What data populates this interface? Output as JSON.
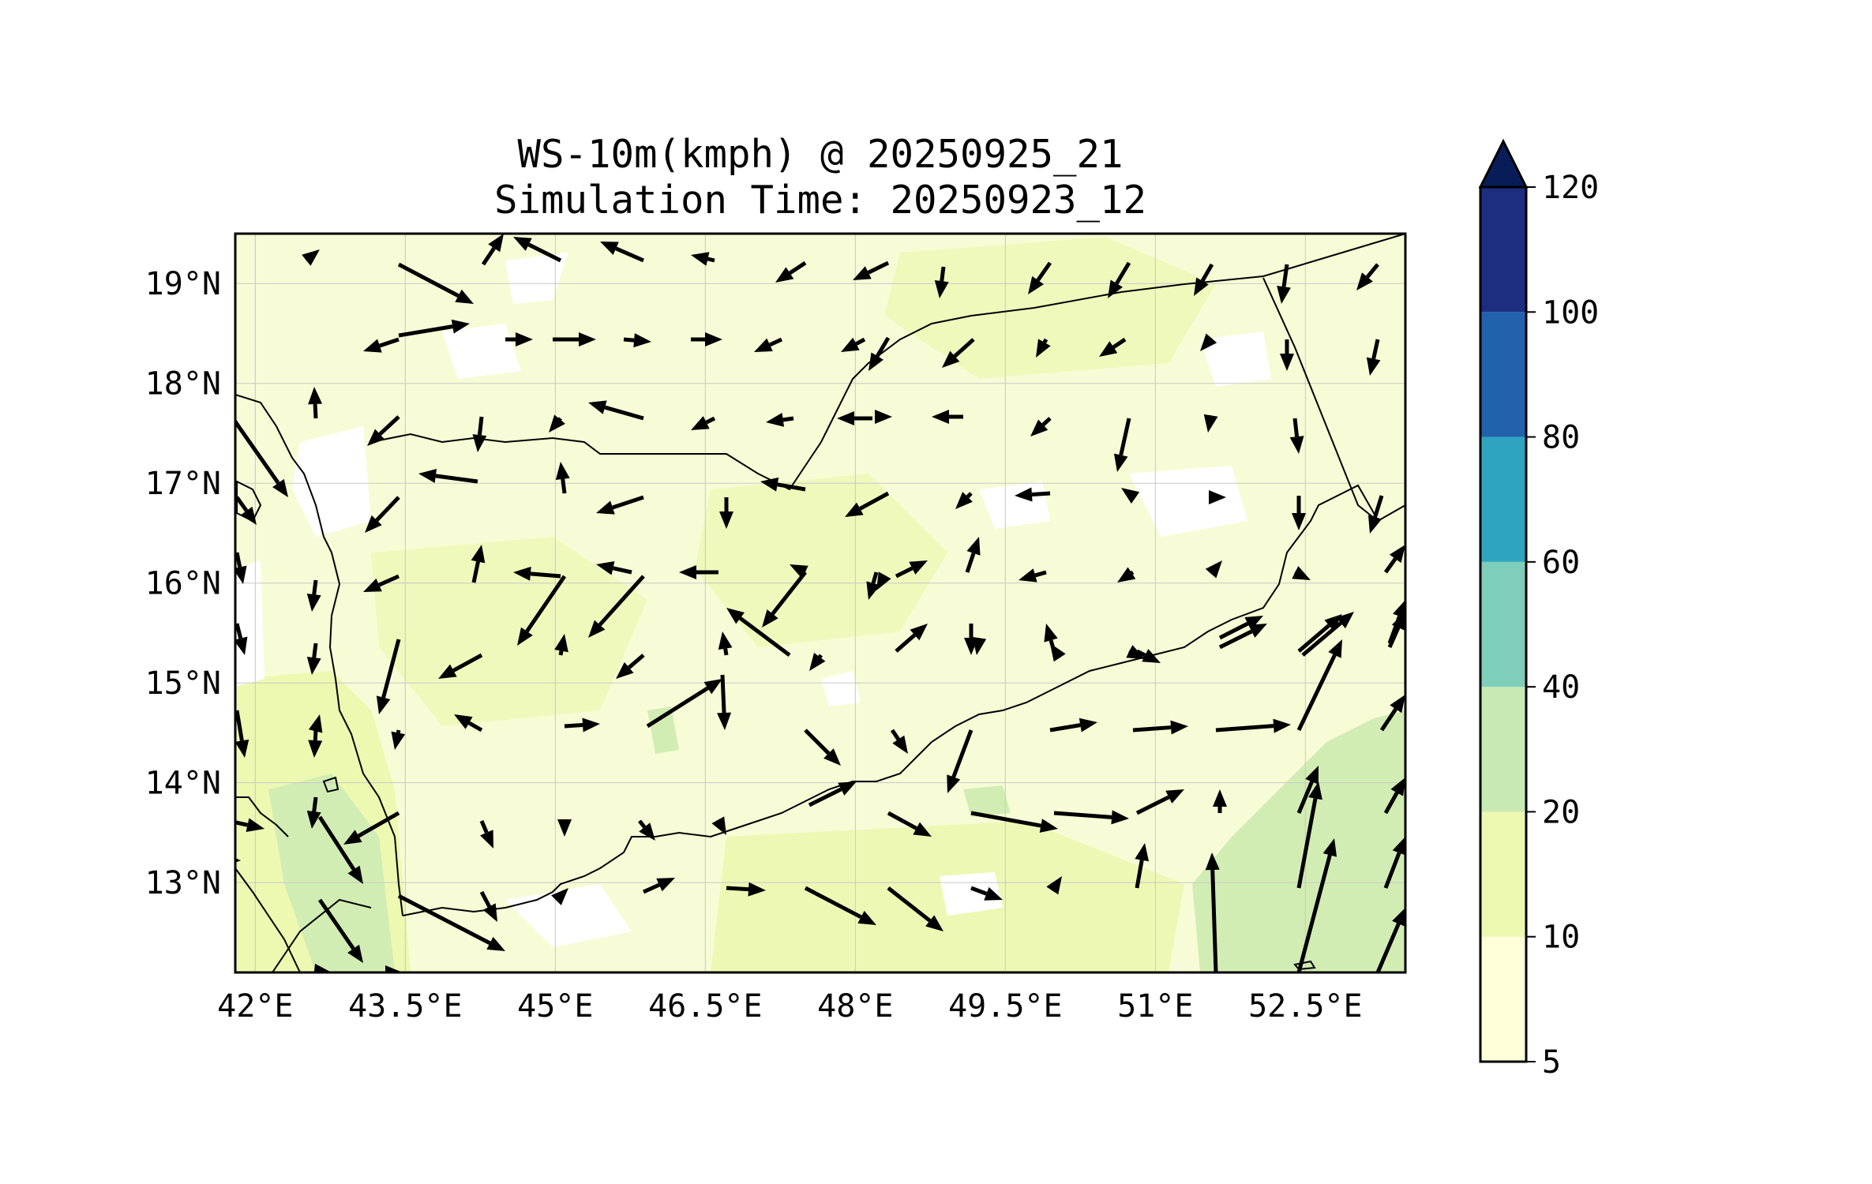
{
  "title": {
    "line1": "WS-10m(kmph) @ 20250925_21",
    "line2": "Simulation Time: 20250923_12"
  },
  "map": {
    "lon_range": [
      41.8,
      53.5
    ],
    "lat_range": [
      12.1,
      19.5
    ],
    "x_ticks": [
      {
        "value": 42.0,
        "label": "42°E"
      },
      {
        "value": 43.5,
        "label": "43.5°E"
      },
      {
        "value": 45.0,
        "label": "45°E"
      },
      {
        "value": 46.5,
        "label": "46.5°E"
      },
      {
        "value": 48.0,
        "label": "48°E"
      },
      {
        "value": 49.5,
        "label": "49.5°E"
      },
      {
        "value": 51.0,
        "label": "51°E"
      },
      {
        "value": 52.5,
        "label": "52.5°E"
      }
    ],
    "y_ticks": [
      {
        "value": 19,
        "label": "19°N"
      },
      {
        "value": 18,
        "label": "18°N"
      },
      {
        "value": 17,
        "label": "17°N"
      },
      {
        "value": 16,
        "label": "16°N"
      },
      {
        "value": 15,
        "label": "15°N"
      },
      {
        "value": 14,
        "label": "14°N"
      },
      {
        "value": 13,
        "label": "13°N"
      }
    ],
    "grid": true
  },
  "colorbar": {
    "levels": [
      5,
      10,
      20,
      40,
      60,
      80,
      100,
      120
    ],
    "labels": [
      "5",
      "10",
      "20",
      "40",
      "60",
      "80",
      "100",
      "120"
    ],
    "colors": [
      "#ffffd9",
      "#edf8b1",
      "#c7e9b4",
      "#7fcdbb",
      "#2ea4c0",
      "#2262ac",
      "#1d2e81"
    ],
    "extend_color": "#081d58",
    "extend": "max"
  },
  "colors": {
    "land_light": "#f7fcd6",
    "land_mid": "#edf8b1",
    "land_green": "#d2edb4",
    "white_patch": "#ffffff",
    "coast": "#000000"
  }
}
